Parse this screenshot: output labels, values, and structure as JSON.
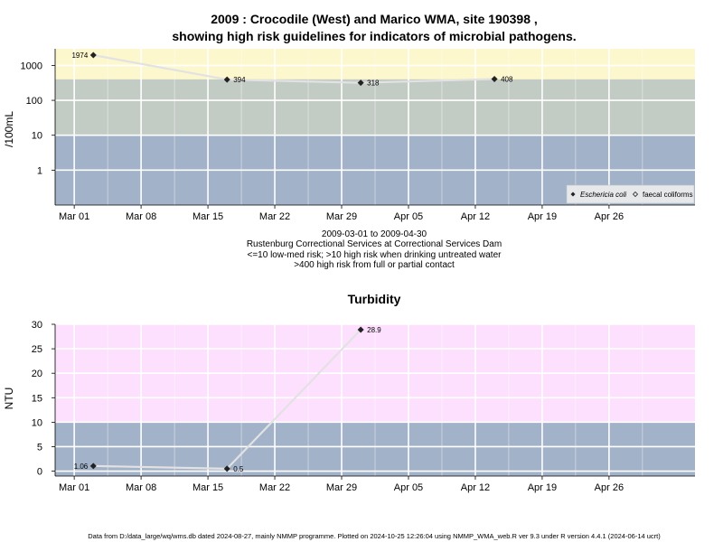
{
  "chart_data": [
    {
      "type": "line",
      "title_line1": "2009 : Crocodile (West) and Marico WMA, site 190398 ,",
      "title_line2": "showing high risk guidelines for indicators of microbial pathogens.",
      "ylabel": "/100mL",
      "y_scale": "log",
      "ylim": [
        0.1,
        3000
      ],
      "yticks": [
        "1",
        "10",
        "100",
        "1000"
      ],
      "ytick_values": [
        1,
        10,
        100,
        1000
      ],
      "x_ticks": [
        "Mar 01",
        "Mar 08",
        "Mar 15",
        "Mar 22",
        "Mar 29",
        "Apr 05",
        "Apr 12",
        "Apr 19",
        "Apr 26"
      ],
      "x_tick_dates": [
        "2009-03-01",
        "2009-03-08",
        "2009-03-15",
        "2009-03-22",
        "2009-03-29",
        "2009-04-05",
        "2009-04-12",
        "2009-04-19",
        "2009-04-26"
      ],
      "xlim": [
        "2009-02-27",
        "2009-05-05"
      ],
      "bands": [
        {
          "from": 400,
          "to": 3000,
          "color": "#fcf7cc"
        },
        {
          "from": 10,
          "to": 400,
          "color": "#c3cbc5"
        },
        {
          "from": 0.1,
          "to": 10,
          "color": "#a2b2c9"
        }
      ],
      "grid": true,
      "series": [
        {
          "name": "Eschericia coli",
          "points": [
            {
              "x": "2009-03-03",
              "y": 1974,
              "label": "1974"
            },
            {
              "x": "2009-03-17",
              "y": 394,
              "label": "394"
            },
            {
              "x": "2009-03-31",
              "y": 318,
              "label": "318"
            },
            {
              "x": "2009-04-14",
              "y": 408,
              "label": "408"
            }
          ]
        }
      ],
      "legend": {
        "placement": "bottom-right",
        "items": [
          {
            "label": "Eschericia coli",
            "marker": "filled-diamond",
            "italic": true
          },
          {
            "label": "faecal coliforms",
            "marker": "open-diamond",
            "italic": false
          }
        ]
      },
      "subtitle_lines": [
        "2009-03-01 to 2009-04-30",
        "Rustenburg Correctional Services at Correctional Services Dam",
        "<=10 low-med risk; >10 high risk when drinking untreated water",
        ">400 high risk from full or partial contact"
      ]
    },
    {
      "type": "line",
      "title": "Turbidity",
      "ylabel": "NTU",
      "ylim": [
        -1,
        30
      ],
      "yticks": [
        "0",
        "5",
        "10",
        "15",
        "20",
        "25",
        "30"
      ],
      "ytick_values": [
        0,
        5,
        10,
        15,
        20,
        25,
        30
      ],
      "x_ticks": [
        "Mar 01",
        "Mar 08",
        "Mar 15",
        "Mar 22",
        "Mar 29",
        "Apr 05",
        "Apr 12",
        "Apr 19",
        "Apr 26"
      ],
      "x_tick_dates": [
        "2009-03-01",
        "2009-03-08",
        "2009-03-15",
        "2009-03-22",
        "2009-03-29",
        "2009-04-05",
        "2009-04-12",
        "2009-04-19",
        "2009-04-26"
      ],
      "xlim": [
        "2009-02-27",
        "2009-05-05"
      ],
      "bands": [
        {
          "from": 10,
          "to": 30,
          "color": "#fde0fd"
        },
        {
          "from": -1,
          "to": 10,
          "color": "#a2b2c9"
        }
      ],
      "grid": true,
      "series": [
        {
          "points": [
            {
              "x": "2009-03-03",
              "y": 1.06,
              "label": "1.06"
            },
            {
              "x": "2009-03-17",
              "y": 0.5,
              "label": "0.5"
            },
            {
              "x": "2009-03-31",
              "y": 28.9,
              "label": "28.9"
            }
          ]
        }
      ]
    }
  ],
  "footer": "Data from D:/data_large/wq/wms.db dated 2024-08-27, mainly NMMP programme. Plotted on 2024-10-25 12:26:04 using NMMP_WMA_web.R ver 9.3 under R version 4.4.1 (2024-06-14 ucrt)"
}
